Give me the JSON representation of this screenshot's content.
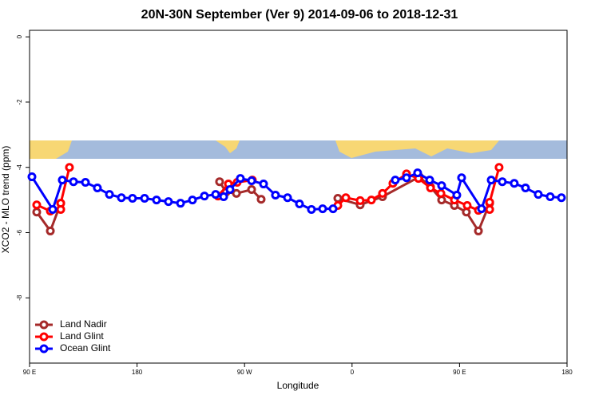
{
  "chart_data": {
    "type": "line",
    "title": "20N-30N September (Ver 9)   2014-09-06 to 2018-12-31",
    "x_label": "Longitude",
    "y_label": "XCO2 - MLO trend (ppm)",
    "xlim": [
      90,
      540
    ],
    "ylim": [
      -10,
      0.2
    ],
    "xticks": [
      {
        "value": 90,
        "label": "90 E"
      },
      180,
      {
        "value": 270,
        "label": "90 W"
      },
      {
        "value": 360,
        "label": "0"
      },
      {
        "value": 450,
        "label": "90 E"
      },
      {
        "value": 540,
        "label": "180"
      }
    ],
    "yticks": [
      0,
      -2,
      -4,
      -6,
      -8
    ],
    "legend": "bottom-left",
    "series": [
      {
        "name": "Land Nadir",
        "color": "#a52a2a",
        "x": [
          96,
          107.4,
          116.1,
          null,
          249.1,
          254.5,
          263.2,
          275.9,
          283.9,
          null,
          348.1,
          366.8,
          385.5,
          416.3,
          425.7,
          435,
          445.7,
          455.7,
          465.8,
          475.2
        ],
        "values": [
          -5.37,
          -5.95,
          -5.1,
          null,
          -4.44,
          -4.76,
          -4.8,
          -4.68,
          -4.98,
          null,
          -4.95,
          -5.15,
          -4.9,
          -4.29,
          -4.6,
          -5.0,
          -5.17,
          -5.37,
          -5.95,
          -5.1
        ]
      },
      {
        "name": "Land Glint",
        "color": "#ff0000",
        "x": [
          96,
          107.4,
          116.1,
          116.1,
          123.4,
          null,
          247.8,
          256.5,
          263.8,
          276.5,
          null,
          348.1,
          354.8,
          366.8,
          376.2,
          385.5,
          394.2,
          405.6,
          415.6,
          425.7,
          434.4,
          445.7,
          456.4,
          465.8,
          475.2,
          475.2,
          483.1
        ],
        "values": [
          -5.15,
          -5.34,
          -5.29,
          -5.1,
          -4.0,
          null,
          -4.88,
          -4.51,
          -4.46,
          -4.39,
          null,
          -5.17,
          -4.93,
          -5.02,
          -5.0,
          -4.8,
          -4.49,
          -4.2,
          -4.34,
          -4.63,
          -4.8,
          -5.0,
          -5.17,
          -5.32,
          -5.29,
          -5.07,
          -4.0
        ]
      },
      {
        "name": "Ocean Glint",
        "color": "#0000ff",
        "x": [
          92,
          109.4,
          117.4,
          126.8,
          136.8,
          146.8,
          156.9,
          166.9,
          176.2,
          186.3,
          196.3,
          206.3,
          216.4,
          226.4,
          236.4,
          245.8,
          252.5,
          257.8,
          266.5,
          275.9,
          285.9,
          295.9,
          306,
          316,
          326,
          335.4,
          344.1,
          null,
          396.2,
          405.6,
          414.9,
          425,
          435,
          447.7,
          451.7,
          468.4,
          476.5,
          485.8,
          495.8,
          505.2,
          515.9,
          525.9,
          535.3
        ],
        "values": [
          -4.29,
          -5.29,
          -4.39,
          -4.44,
          -4.46,
          -4.63,
          -4.83,
          -4.93,
          -4.95,
          -4.95,
          -5.0,
          -5.05,
          -5.1,
          -5.0,
          -4.88,
          -4.83,
          -4.9,
          -4.68,
          -4.34,
          -4.41,
          -4.51,
          -4.85,
          -4.93,
          -5.12,
          -5.29,
          -5.27,
          -5.27,
          null,
          -4.39,
          -4.32,
          -4.17,
          -4.39,
          -4.56,
          -4.85,
          -4.32,
          -5.27,
          -4.39,
          -4.44,
          -4.49,
          -4.63,
          -4.83,
          -4.9,
          -4.93
        ]
      }
    ]
  }
}
